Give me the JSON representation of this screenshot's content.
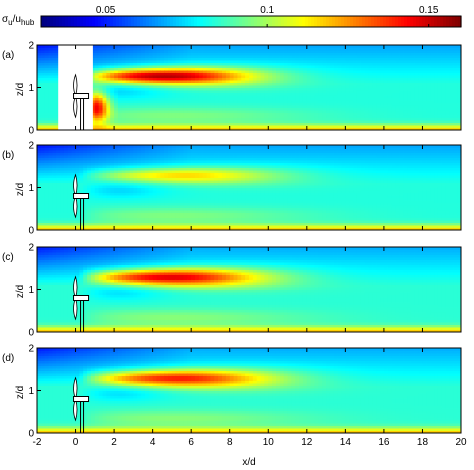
{
  "chart_data": {
    "type": "heatmap",
    "colorbar": {
      "label_main": "σ",
      "label_sub1": "u",
      "label_slash": "/u",
      "label_sub2": "hub",
      "range": [
        0.03,
        0.16
      ],
      "ticks": [
        {
          "value": 0.05,
          "label": "0.05"
        },
        {
          "value": 0.1,
          "label": "0.1"
        },
        {
          "value": 0.15,
          "label": "0.15"
        }
      ],
      "colormap": "jet"
    },
    "xaxis": {
      "label": "x/d",
      "range": [
        -2,
        20
      ],
      "ticks": [
        {
          "value": -2,
          "label": "-2"
        },
        {
          "value": 0,
          "label": "0"
        },
        {
          "value": 2,
          "label": "2"
        },
        {
          "value": 4,
          "label": "4"
        },
        {
          "value": 6,
          "label": "6"
        },
        {
          "value": 8,
          "label": "8"
        },
        {
          "value": 10,
          "label": "10"
        },
        {
          "value": 12,
          "label": "12"
        },
        {
          "value": 14,
          "label": "14"
        },
        {
          "value": 16,
          "label": "16"
        },
        {
          "value": 18,
          "label": "18"
        },
        {
          "value": 20,
          "label": "20"
        }
      ]
    },
    "yaxis": {
      "label": "z/d",
      "range": [
        0,
        2
      ],
      "ticks": [
        {
          "value": 0,
          "label": "0"
        },
        {
          "value": 1,
          "label": "1"
        },
        {
          "value": 2,
          "label": "2"
        }
      ]
    },
    "turbine": {
      "x": 0,
      "hub_z": 0.8,
      "radius": 0.5
    },
    "panels": [
      {
        "label": "(a)",
        "peak": 0.158,
        "peak_x": 4.5,
        "peak_z": 1.28,
        "wake_length": 4.8,
        "wake_spread": 0.16,
        "ambient": 0.083,
        "blank_x": [
          -0.9,
          0.9
        ],
        "near_wake": true
      },
      {
        "label": "(b)",
        "peak": 0.12,
        "peak_x": 5.5,
        "peak_z": 1.3,
        "wake_length": 5.2,
        "wake_spread": 0.15,
        "ambient": 0.083,
        "blank_x": null,
        "near_wake": false
      },
      {
        "label": "(c)",
        "peak": 0.152,
        "peak_x": 4.8,
        "peak_z": 1.3,
        "wake_length": 5.0,
        "wake_spread": 0.17,
        "ambient": 0.084,
        "blank_x": null,
        "near_wake": false
      },
      {
        "label": "(d)",
        "peak": 0.145,
        "peak_x": 5.2,
        "peak_z": 1.3,
        "wake_length": 5.2,
        "wake_spread": 0.17,
        "ambient": 0.084,
        "blank_x": null,
        "near_wake": false
      }
    ]
  }
}
